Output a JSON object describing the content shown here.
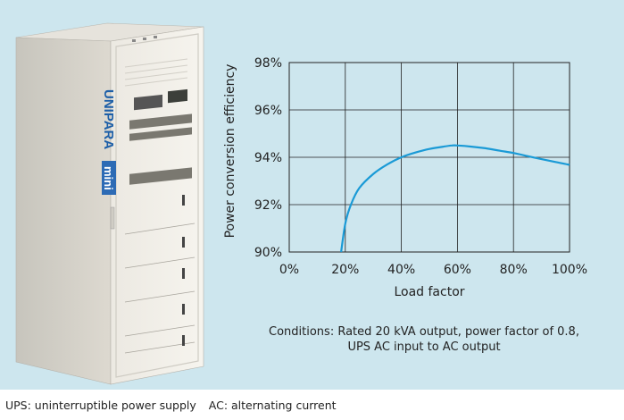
{
  "product": {
    "brand_label": "UNIPARA",
    "model_label": "mini"
  },
  "chart_data": {
    "type": "line",
    "xlabel": "Load factor",
    "ylabel": "Power conversion efficiency",
    "xlim": [
      0,
      100
    ],
    "ylim": [
      90,
      98
    ],
    "x_ticks": [
      "0%",
      "20%",
      "40%",
      "60%",
      "80%",
      "100%"
    ],
    "y_ticks": [
      "90%",
      "92%",
      "94%",
      "96%",
      "98%"
    ],
    "grid": true,
    "series": [
      {
        "color": "#1a9ad6",
        "x": [
          18.5,
          20,
          22,
          25,
          30,
          35,
          40,
          45,
          50,
          55,
          58,
          60,
          65,
          70,
          75,
          80,
          85,
          90,
          95,
          100
        ],
        "y": [
          90.0,
          91.2,
          92.0,
          92.7,
          93.3,
          93.7,
          94.0,
          94.2,
          94.35,
          94.45,
          94.5,
          94.5,
          94.45,
          94.38,
          94.28,
          94.18,
          94.05,
          93.92,
          93.8,
          93.68
        ]
      }
    ]
  },
  "conditions": {
    "line1": "Conditions: Rated 20 kVA output, power factor of 0.8,",
    "line2": "UPS AC input to AC output"
  },
  "footnote": {
    "ups": "UPS: uninterruptible power supply",
    "ac": "AC: alternating current"
  }
}
